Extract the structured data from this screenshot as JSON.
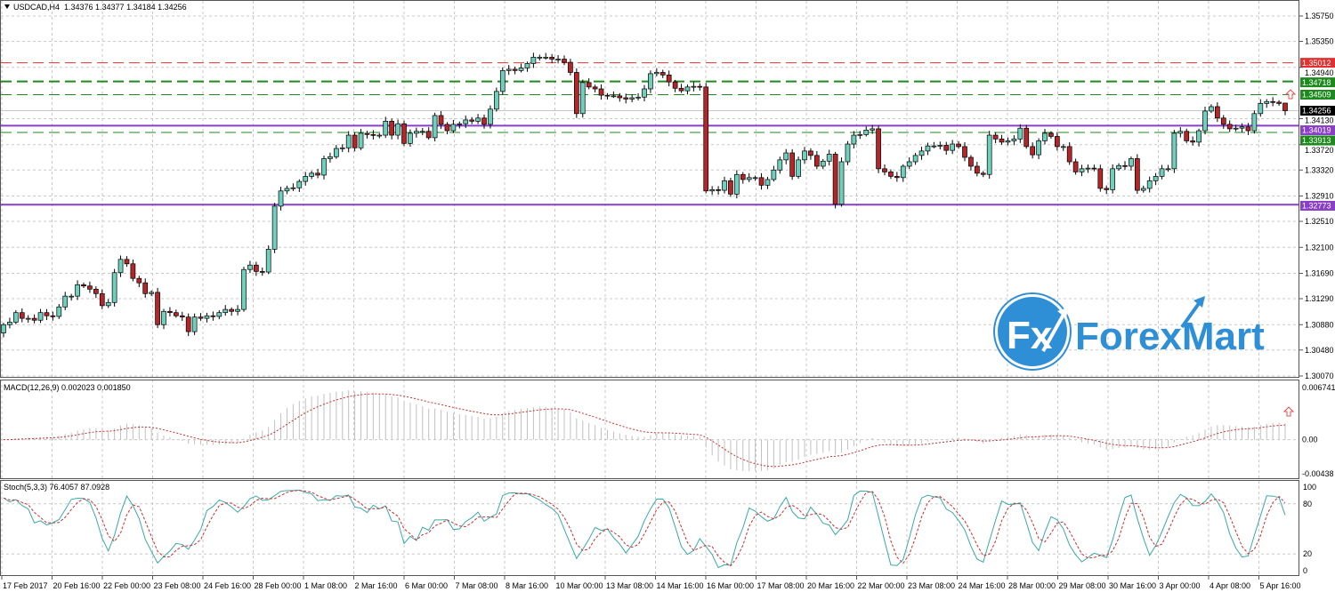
{
  "header": {
    "symbol": "USDCAD,H4",
    "ohlc": "1.34376 1.34377 1.34184 1.34256",
    "menu_icon": "triangle-down-icon"
  },
  "logo": {
    "text": "ForexMart",
    "mark": "Fx",
    "color": "#2f8fd6"
  },
  "colors": {
    "bull": "#6fd0bd",
    "bear": "#b3262a",
    "outline": "#000000",
    "grid": "#c8c8c8",
    "resistance_red": "#e03030",
    "level_green": "#1e8a1e",
    "level_purple": "#8a3fc8",
    "current": "#000000",
    "macd_hist": "#c0c0c0",
    "macd_signal": "#c83030",
    "stoch_main": "#3aa8a8",
    "stoch_signal": "#c83030"
  },
  "chart_data": [
    {
      "type": "candlestick",
      "title": "USDCAD,H4",
      "ylim": [
        1.3007,
        1.3575
      ],
      "y_ticks": [
        "1.35750",
        "1.35350",
        "1.34940",
        "1.34130",
        "1.33720",
        "1.33320",
        "1.32910",
        "1.32510",
        "1.32100",
        "1.31690",
        "1.31290",
        "1.30880",
        "1.30480",
        "1.30070"
      ],
      "x_ticks": [
        "17 Feb 2017",
        "20 Feb 16:00",
        "22 Feb 00:00",
        "23 Feb 08:00",
        "24 Feb 16:00",
        "28 Feb 00:00",
        "1 Mar 08:00",
        "2 Mar 16:00",
        "6 Mar 00:00",
        "7 Mar 08:00",
        "8 Mar 16:00",
        "10 Mar 00:00",
        "13 Mar 08:00",
        "14 Mar 16:00",
        "16 Mar 00:00",
        "17 Mar 08:00",
        "20 Mar 16:00",
        "22 Mar 00:00",
        "23 Mar 08:00",
        "24 Mar 16:00",
        "28 Mar 00:00",
        "29 Mar 08:00",
        "30 Mar 16:00",
        "3 Apr 00:00",
        "4 Apr 08:00",
        "5 Apr 16:00"
      ],
      "grid": true,
      "first_open": 1.3075,
      "last_bar": {
        "open": 1.34376,
        "high": 1.34377,
        "low": 1.34184,
        "close": 1.34256
      },
      "closes": [
        1.3088,
        1.3092,
        1.3107,
        1.3098,
        1.3098,
        1.3095,
        1.3107,
        1.3102,
        1.3101,
        1.3116,
        1.3133,
        1.3133,
        1.3151,
        1.3149,
        1.3144,
        1.3137,
        1.3118,
        1.3123,
        1.317,
        1.3191,
        1.3184,
        1.3161,
        1.3154,
        1.3137,
        1.3139,
        1.3088,
        1.3109,
        1.3107,
        1.3102,
        1.31,
        1.3077,
        1.31,
        1.3098,
        1.3102,
        1.3101,
        1.3107,
        1.3112,
        1.3109,
        1.3112,
        1.3175,
        1.3182,
        1.3172,
        1.3171,
        1.3207,
        1.3275,
        1.3299,
        1.3303,
        1.3304,
        1.3314,
        1.3322,
        1.3327,
        1.3324,
        1.335,
        1.3353,
        1.3366,
        1.3367,
        1.3387,
        1.3367,
        1.339,
        1.3388,
        1.3387,
        1.3387,
        1.3409,
        1.3387,
        1.3405,
        1.3374,
        1.339,
        1.3393,
        1.3393,
        1.3383,
        1.3418,
        1.3404,
        1.3394,
        1.3404,
        1.3405,
        1.3411,
        1.3409,
        1.3414,
        1.3404,
        1.3428,
        1.3456,
        1.3489,
        1.3491,
        1.3489,
        1.3493,
        1.35,
        1.351,
        1.351,
        1.351,
        1.3507,
        1.3507,
        1.3502,
        1.3486,
        1.3421,
        1.347,
        1.3463,
        1.346,
        1.345,
        1.3449,
        1.3449,
        1.3446,
        1.3444,
        1.3446,
        1.3447,
        1.346,
        1.3484,
        1.3486,
        1.3482,
        1.3471,
        1.3461,
        1.3457,
        1.3463,
        1.3464,
        1.3463,
        1.3299,
        1.3301,
        1.33,
        1.3315,
        1.3294,
        1.3325,
        1.3317,
        1.332,
        1.332,
        1.3308,
        1.3317,
        1.3332,
        1.3348,
        1.3359,
        1.3322,
        1.3348,
        1.3362,
        1.3355,
        1.3338,
        1.3346,
        1.3357,
        1.3278,
        1.3345,
        1.3373,
        1.3387,
        1.3388,
        1.3395,
        1.3397,
        1.3334,
        1.3329,
        1.3322,
        1.332,
        1.3338,
        1.3345,
        1.3355,
        1.3362,
        1.337,
        1.337,
        1.3371,
        1.3363,
        1.3373,
        1.3369,
        1.3352,
        1.3338,
        1.3327,
        1.3325,
        1.3387,
        1.3381,
        1.3376,
        1.3378,
        1.3381,
        1.3398,
        1.3369,
        1.3356,
        1.3378,
        1.339,
        1.3385,
        1.3369,
        1.3369,
        1.3345,
        1.3329,
        1.3334,
        1.3335,
        1.3334,
        1.3303,
        1.3301,
        1.3334,
        1.3339,
        1.3338,
        1.335,
        1.33,
        1.3303,
        1.3315,
        1.3322,
        1.3334,
        1.3334,
        1.339,
        1.3393,
        1.3378,
        1.3376,
        1.3394,
        1.3425,
        1.3432,
        1.3414,
        1.3404,
        1.3397,
        1.3398,
        1.34,
        1.3394,
        1.3421,
        1.3437,
        1.344,
        1.3439,
        1.3437,
        1.34256
      ],
      "levels": [
        {
          "price": 1.35012,
          "label": "1.35012",
          "style": "dashed",
          "color": "#e03030"
        },
        {
          "price": 1.34718,
          "label": "1.34718",
          "style": "dashed-thick",
          "color": "#1e8a1e"
        },
        {
          "price": 1.34509,
          "label": "1.34509",
          "style": "dashed",
          "color": "#1e8a1e"
        },
        {
          "price": 1.34256,
          "label": "1.34256",
          "style": "current",
          "color": "#000000"
        },
        {
          "price": 1.34019,
          "label": "1.34019",
          "style": "solid",
          "color": "#8a3fc8"
        },
        {
          "price": 1.33913,
          "label": "1.33913",
          "style": "dashed",
          "color": "#1e8a1e"
        },
        {
          "price": 1.32773,
          "label": "1.32773",
          "style": "solid",
          "color": "#8a3fc8"
        }
      ]
    },
    {
      "type": "macd",
      "label": "MACD(12,26,9) 0.002023 0.001850",
      "params": [
        12,
        26,
        9
      ],
      "ylim": [
        -0.00438,
        0.006741
      ],
      "y_ticks": [
        "0.006741",
        "0.00",
        "-0.00438"
      ]
    },
    {
      "type": "stochastic",
      "label": "Stoch(5,3,3) 76.4057 87.0928",
      "params": [
        5,
        3,
        3
      ],
      "ylim": [
        0,
        100
      ],
      "y_ticks": [
        "100",
        "80",
        "20",
        "0"
      ]
    }
  ],
  "signals": [
    {
      "icon": "up-arrow-icon",
      "panel": "price"
    },
    {
      "icon": "up-arrow-icon",
      "panel": "macd"
    }
  ]
}
